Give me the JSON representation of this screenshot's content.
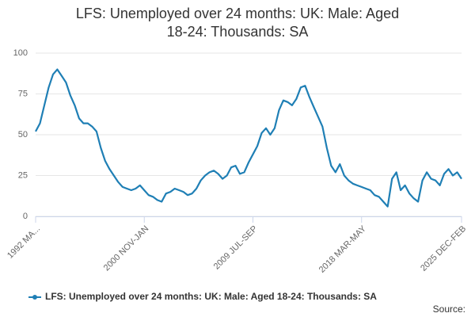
{
  "chart_data": {
    "type": "line",
    "title": "LFS: Unemployed over 24 months: UK: Male: Aged 18-24: Thousands: SA",
    "source": "Source:",
    "categories": [
      "1992 MA...",
      null,
      null,
      null,
      null,
      null,
      null,
      null,
      null,
      null,
      null,
      null,
      null,
      null,
      null,
      null,
      null,
      null,
      null,
      null,
      null,
      null,
      null,
      null,
      null,
      "2000 NOV-JAN",
      null,
      null,
      null,
      null,
      null,
      null,
      null,
      null,
      null,
      null,
      null,
      null,
      null,
      null,
      null,
      null,
      null,
      null,
      null,
      null,
      null,
      null,
      null,
      null,
      "2009 JUL-SEP",
      null,
      null,
      null,
      null,
      null,
      null,
      null,
      null,
      null,
      null,
      null,
      null,
      null,
      null,
      null,
      null,
      null,
      null,
      null,
      null,
      null,
      null,
      null,
      null,
      "2018 MAR-MAY",
      null,
      null,
      null,
      null,
      null,
      null,
      null,
      null,
      null,
      null,
      null,
      null,
      null,
      null,
      null,
      null,
      null,
      null,
      null,
      null,
      null,
      null,
      "2025 DEC-FEB"
    ],
    "series": [
      {
        "name": "LFS: Unemployed over 24 months: UK: Male: Aged 18-24: Thousands: SA",
        "color": "#1f7fb5",
        "values": [
          52,
          57,
          68,
          79,
          87,
          90,
          86,
          82,
          74,
          68,
          60,
          57,
          57,
          55,
          52,
          42,
          34,
          29,
          25,
          21,
          18,
          17,
          16,
          17,
          19,
          16,
          13,
          12,
          10,
          9,
          14,
          15,
          17,
          16,
          15,
          13,
          14,
          17,
          22,
          25,
          27,
          28,
          26,
          23,
          25,
          30,
          31,
          26,
          27,
          33,
          38,
          43,
          51,
          54,
          50,
          54,
          65,
          71,
          70,
          68,
          72,
          79,
          80,
          73,
          67,
          61,
          55,
          42,
          31,
          27,
          32,
          25,
          22,
          20,
          19,
          18,
          17,
          16,
          13,
          12,
          9,
          6,
          23,
          27,
          16,
          19,
          14,
          11,
          9,
          22,
          27,
          23,
          22,
          19,
          26,
          29,
          25,
          27,
          23
        ]
      }
    ],
    "ylim": [
      0,
      100
    ],
    "yticks": [
      0,
      25,
      50,
      75,
      100
    ],
    "grid": true,
    "legend": "bottom"
  }
}
